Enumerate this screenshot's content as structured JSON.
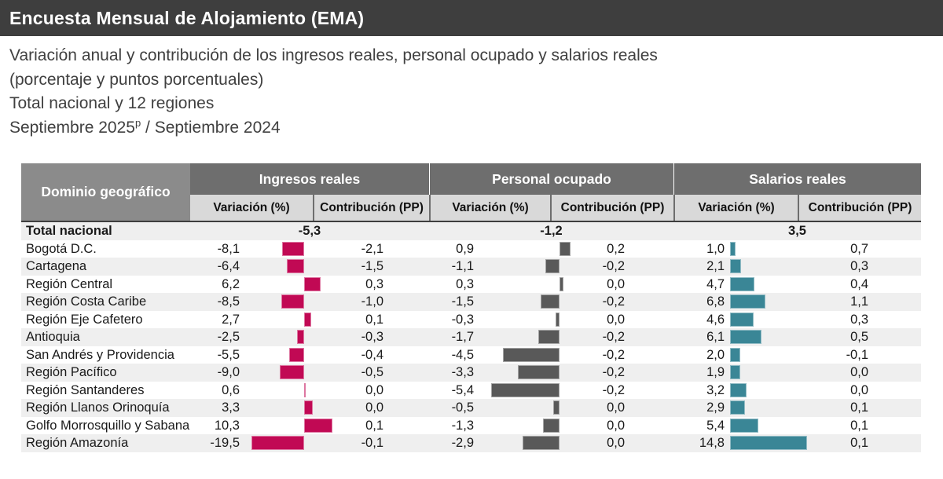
{
  "title_bar": {
    "title": "Encuesta Mensual de Alojamiento (EMA)"
  },
  "subtitle": {
    "line1": "Variación anual y contribución de los ingresos reales, personal ocupado y salarios reales",
    "line2": "(porcentaje y puntos porcentuales)",
    "line3": "Total nacional y 12 regiones",
    "period_prefix": "Septiembre 2025",
    "period_sup": "p",
    "period_suffix": " / Septiembre 2024"
  },
  "colors": {
    "title_bar_bg": "#3e3e3e",
    "domain_header_bg": "#8b8b8b",
    "group_header_bg": "#6e6e6e",
    "sub_header_bg": "#d9d9d9",
    "row_band_bg": "#efefef",
    "ingresos_bar": "#c10954",
    "personal_bar": "#595959",
    "salarios_bar": "#3a8696"
  },
  "table": {
    "domain_header": "Dominio geográfico",
    "sub_headers": {
      "variacion": "Variación (%)",
      "contribucion": "Contribución (PP)"
    },
    "groups": [
      {
        "id": "ingresos",
        "label": "Ingresos reales",
        "bar_color": "#c10954"
      },
      {
        "id": "personal",
        "label": "Personal ocupado",
        "bar_color": "#595959"
      },
      {
        "id": "salarios",
        "label": "Salarios reales",
        "bar_color": "#3a8696"
      }
    ],
    "total_row": {
      "name": "Total nacional",
      "ingresos": "-5,3",
      "personal": "-1,2",
      "salarios": "3,5"
    },
    "rows": [
      {
        "name": "Bogotá D.C.",
        "ingresos": {
          "var": -8.1,
          "var_text": "-8,1",
          "contrib_text": "-2,1"
        },
        "personal": {
          "var": 0.9,
          "var_text": "0,9",
          "contrib_text": "0,2"
        },
        "salarios": {
          "var": 1.0,
          "var_text": "1,0",
          "contrib_text": "0,7"
        }
      },
      {
        "name": "Cartagena",
        "ingresos": {
          "var": -6.4,
          "var_text": "-6,4",
          "contrib_text": "-1,5"
        },
        "personal": {
          "var": -1.1,
          "var_text": "-1,1",
          "contrib_text": "-0,2"
        },
        "salarios": {
          "var": 2.1,
          "var_text": "2,1",
          "contrib_text": "0,3"
        }
      },
      {
        "name": "Región Central",
        "ingresos": {
          "var": 6.2,
          "var_text": "6,2",
          "contrib_text": "0,3"
        },
        "personal": {
          "var": 0.3,
          "var_text": "0,3",
          "contrib_text": "0,0"
        },
        "salarios": {
          "var": 4.7,
          "var_text": "4,7",
          "contrib_text": "0,4"
        }
      },
      {
        "name": "Región Costa Caribe",
        "ingresos": {
          "var": -8.5,
          "var_text": "-8,5",
          "contrib_text": "-1,0"
        },
        "personal": {
          "var": -1.5,
          "var_text": "-1,5",
          "contrib_text": "-0,2"
        },
        "salarios": {
          "var": 6.8,
          "var_text": "6,8",
          "contrib_text": "1,1"
        }
      },
      {
        "name": "Región Eje Cafetero",
        "ingresos": {
          "var": 2.7,
          "var_text": "2,7",
          "contrib_text": "0,1"
        },
        "personal": {
          "var": -0.3,
          "var_text": "-0,3",
          "contrib_text": "0,0"
        },
        "salarios": {
          "var": 4.6,
          "var_text": "4,6",
          "contrib_text": "0,3"
        }
      },
      {
        "name": "Antioquia",
        "ingresos": {
          "var": -2.5,
          "var_text": "-2,5",
          "contrib_text": "-0,3"
        },
        "personal": {
          "var": -1.7,
          "var_text": "-1,7",
          "contrib_text": "-0,2"
        },
        "salarios": {
          "var": 6.1,
          "var_text": "6,1",
          "contrib_text": "0,5"
        }
      },
      {
        "name": "San Andrés y Providencia",
        "ingresos": {
          "var": -5.5,
          "var_text": "-5,5",
          "contrib_text": "-0,4"
        },
        "personal": {
          "var": -4.5,
          "var_text": "-4,5",
          "contrib_text": "-0,2"
        },
        "salarios": {
          "var": 2.0,
          "var_text": "2,0",
          "contrib_text": "-0,1"
        }
      },
      {
        "name": "Región Pacífico",
        "ingresos": {
          "var": -9.0,
          "var_text": "-9,0",
          "contrib_text": "-0,5"
        },
        "personal": {
          "var": -3.3,
          "var_text": "-3,3",
          "contrib_text": "-0,2"
        },
        "salarios": {
          "var": 1.9,
          "var_text": "1,9",
          "contrib_text": "0,0"
        }
      },
      {
        "name": "Región Santanderes",
        "ingresos": {
          "var": 0.6,
          "var_text": "0,6",
          "contrib_text": "0,0"
        },
        "personal": {
          "var": -5.4,
          "var_text": "-5,4",
          "contrib_text": "-0,2"
        },
        "salarios": {
          "var": 3.2,
          "var_text": "3,2",
          "contrib_text": "0,0"
        }
      },
      {
        "name": "Región Llanos Orinoquía",
        "ingresos": {
          "var": 3.3,
          "var_text": "3,3",
          "contrib_text": "0,0"
        },
        "personal": {
          "var": -0.5,
          "var_text": "-0,5",
          "contrib_text": "0,0"
        },
        "salarios": {
          "var": 2.9,
          "var_text": "2,9",
          "contrib_text": "0,1"
        }
      },
      {
        "name": "Golfo Morrosquillo y Sabana",
        "ingresos": {
          "var": 10.3,
          "var_text": "10,3",
          "contrib_text": "0,1"
        },
        "personal": {
          "var": -1.3,
          "var_text": "-1,3",
          "contrib_text": "0,0"
        },
        "salarios": {
          "var": 5.4,
          "var_text": "5,4",
          "contrib_text": "0,1"
        }
      },
      {
        "name": "Región Amazonía",
        "ingresos": {
          "var": -19.5,
          "var_text": "-19,5",
          "contrib_text": "-0,1"
        },
        "personal": {
          "var": -2.9,
          "var_text": "-2,9",
          "contrib_text": "0,0"
        },
        "salarios": {
          "var": 14.8,
          "var_text": "14,8",
          "contrib_text": "0,1"
        }
      }
    ]
  },
  "chart_data": {
    "type": "bar",
    "title": "Encuesta Mensual de Alojamiento (EMA)",
    "subtitle": "Variación anual y contribución de los ingresos reales, personal ocupado y salarios reales (porcentaje y puntos porcentuales)",
    "scope": "Total nacional y 12 regiones",
    "period": "Septiembre 2025p / Septiembre 2024",
    "orientation": "horizontal",
    "legend_position": "none",
    "grid": false,
    "total": {
      "name": "Total nacional",
      "ingresos_variacion": -5.3,
      "personal_variacion": -1.2,
      "salarios_variacion": 3.5
    },
    "categories": [
      "Bogotá D.C.",
      "Cartagena",
      "Región Central",
      "Región Costa Caribe",
      "Región Eje Cafetero",
      "Antioquia",
      "San Andrés y Providencia",
      "Región Pacífico",
      "Región Santanderes",
      "Región Llanos Orinoquía",
      "Golfo Morrosquillo y Sabana",
      "Región Amazonía"
    ],
    "series": [
      {
        "name": "Ingresos reales - Variación (%)",
        "color": "#c10954",
        "values": [
          -8.1,
          -6.4,
          6.2,
          -8.5,
          2.7,
          -2.5,
          -5.5,
          -9.0,
          0.6,
          3.3,
          10.3,
          -19.5
        ]
      },
      {
        "name": "Ingresos reales - Contribución (PP)",
        "color": "#c10954",
        "values": [
          -2.1,
          -1.5,
          0.3,
          -1.0,
          0.1,
          -0.3,
          -0.4,
          -0.5,
          0.0,
          0.0,
          0.1,
          -0.1
        ]
      },
      {
        "name": "Personal ocupado - Variación (%)",
        "color": "#595959",
        "values": [
          0.9,
          -1.1,
          0.3,
          -1.5,
          -0.3,
          -1.7,
          -4.5,
          -3.3,
          -5.4,
          -0.5,
          -1.3,
          -2.9
        ]
      },
      {
        "name": "Personal ocupado - Contribución (PP)",
        "color": "#595959",
        "values": [
          0.2,
          -0.2,
          0.0,
          -0.2,
          0.0,
          -0.2,
          -0.2,
          -0.2,
          -0.2,
          0.0,
          0.0,
          0.0
        ]
      },
      {
        "name": "Salarios reales - Variación (%)",
        "color": "#3a8696",
        "values": [
          1.0,
          2.1,
          4.7,
          6.8,
          4.6,
          6.1,
          2.0,
          1.9,
          3.2,
          2.9,
          5.4,
          14.8
        ]
      },
      {
        "name": "Salarios reales - Contribución (PP)",
        "color": "#3a8696",
        "values": [
          0.7,
          0.3,
          0.4,
          1.1,
          0.3,
          0.5,
          -0.1,
          0.0,
          0.0,
          0.1,
          0.1,
          0.1
        ]
      }
    ]
  }
}
